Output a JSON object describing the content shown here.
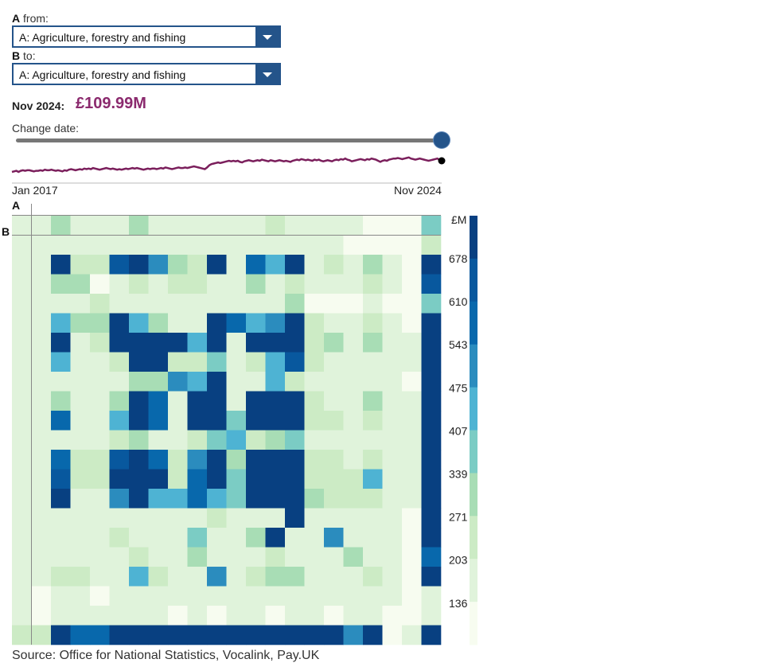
{
  "controls": {
    "from_label_letter": "A",
    "from_label_text": "from:",
    "from_value": "A: Agriculture, forestry and fishing",
    "to_label_letter": "B",
    "to_label_text": "to:",
    "to_value": "A: Agriculture, forestry and fishing",
    "change_date_label": "Change date:",
    "slider_position": 1.0
  },
  "summary": {
    "date": "Nov 2024:",
    "value": "£109.99M",
    "color": "#8b2a6e"
  },
  "source": "Source: Office for National Statistics, Vocalink, Pay.UK",
  "chart_data": [
    {
      "type": "line",
      "x_start": "Jan 2017",
      "x_end": "Nov 2024",
      "color": "#7b1f5c",
      "values": [
        60,
        61,
        62,
        60,
        62,
        63,
        62,
        63,
        63,
        62,
        61,
        62,
        62,
        63,
        62,
        64,
        63,
        63,
        64,
        63,
        62,
        63,
        62,
        61,
        63,
        62,
        64,
        65,
        64,
        63,
        64,
        65,
        64,
        66,
        65,
        66,
        65,
        67,
        66,
        65,
        64,
        65,
        66,
        67,
        66,
        65,
        66,
        65,
        64,
        65,
        64,
        65,
        66,
        65,
        66,
        67,
        66,
        67,
        66,
        65,
        64,
        65,
        66,
        65,
        66,
        66,
        65,
        66,
        67,
        66,
        68,
        67,
        66,
        65,
        66,
        67,
        68,
        67,
        67,
        68,
        67,
        68,
        69,
        70,
        69,
        68,
        67,
        66,
        65,
        68,
        72,
        74,
        75,
        76,
        77,
        76,
        77,
        78,
        79,
        80,
        79,
        80,
        79,
        80,
        78,
        77,
        79,
        80,
        81,
        80,
        79,
        80,
        81,
        80,
        82,
        81,
        80,
        79,
        81,
        80,
        79,
        80,
        81,
        80,
        79,
        80,
        79,
        78,
        80,
        81,
        82,
        81,
        83,
        82,
        81,
        82,
        81,
        80,
        82,
        81,
        82,
        80,
        79,
        80,
        81,
        80,
        79,
        81,
        82,
        81,
        83,
        82,
        84,
        82,
        81,
        79,
        80,
        81,
        82,
        83,
        82,
        81,
        83,
        82,
        84,
        83,
        82,
        80,
        78,
        80,
        81,
        80,
        82,
        83,
        84,
        84,
        85,
        84,
        83,
        84,
        85,
        86,
        84,
        83,
        82,
        83,
        84,
        83,
        82,
        81,
        80,
        81,
        82,
        83,
        84,
        82,
        80
      ],
      "endpoint_value": 80
    },
    {
      "type": "heatmap",
      "x_axis_label": "A",
      "y_axis_label": "B",
      "legend_title": "£M",
      "legend_ticks": [
        "678",
        "610",
        "543",
        "475",
        "407",
        "339",
        "271",
        "203",
        "136"
      ],
      "color_steps": [
        "#f7fcf0",
        "#e0f3db",
        "#ccebc5",
        "#a8ddb5",
        "#7bccc4",
        "#4eb3d3",
        "#2b8cbe",
        "#0868ac",
        "#08589e",
        "#084081"
      ],
      "matrix_levels": [
        [
          1,
          1,
          3,
          1,
          1,
          1,
          3,
          1,
          1,
          1,
          1,
          1,
          1,
          2,
          1,
          1,
          1,
          1,
          0,
          0,
          0,
          4
        ],
        [
          1,
          1,
          1,
          1,
          1,
          1,
          1,
          1,
          1,
          1,
          1,
          1,
          1,
          1,
          1,
          1,
          1,
          0,
          0,
          0,
          0,
          2
        ],
        [
          1,
          1,
          9,
          2,
          2,
          8,
          9,
          6,
          3,
          2,
          9,
          1,
          7,
          5,
          9,
          1,
          2,
          1,
          3,
          1,
          0,
          9
        ],
        [
          1,
          1,
          3,
          3,
          0,
          1,
          2,
          1,
          2,
          2,
          1,
          1,
          3,
          1,
          2,
          1,
          1,
          1,
          2,
          1,
          0,
          8
        ],
        [
          1,
          1,
          1,
          1,
          2,
          1,
          1,
          1,
          1,
          1,
          1,
          1,
          1,
          1,
          3,
          0,
          0,
          0,
          1,
          0,
          0,
          4
        ],
        [
          1,
          1,
          5,
          3,
          3,
          9,
          5,
          3,
          1,
          1,
          9,
          7,
          5,
          6,
          9,
          2,
          1,
          1,
          2,
          1,
          0,
          9
        ],
        [
          1,
          1,
          9,
          1,
          2,
          9,
          9,
          9,
          9,
          5,
          9,
          1,
          9,
          9,
          9,
          2,
          3,
          1,
          3,
          1,
          1,
          9
        ],
        [
          1,
          1,
          5,
          1,
          1,
          2,
          9,
          9,
          2,
          2,
          4,
          1,
          2,
          5,
          8,
          2,
          1,
          1,
          1,
          1,
          1,
          9
        ],
        [
          1,
          1,
          1,
          1,
          1,
          1,
          3,
          3,
          6,
          5,
          9,
          1,
          1,
          5,
          2,
          1,
          1,
          1,
          1,
          1,
          0,
          9
        ],
        [
          1,
          1,
          3,
          1,
          1,
          3,
          9,
          7,
          1,
          9,
          9,
          1,
          9,
          9,
          9,
          2,
          1,
          1,
          3,
          1,
          1,
          9
        ],
        [
          1,
          1,
          7,
          1,
          1,
          5,
          9,
          7,
          1,
          9,
          9,
          4,
          9,
          9,
          9,
          2,
          2,
          1,
          2,
          1,
          1,
          9
        ],
        [
          1,
          1,
          1,
          1,
          1,
          2,
          3,
          1,
          1,
          2,
          4,
          5,
          2,
          3,
          4,
          1,
          1,
          1,
          1,
          1,
          1,
          9
        ],
        [
          1,
          1,
          7,
          2,
          2,
          8,
          9,
          7,
          2,
          6,
          9,
          3,
          9,
          9,
          9,
          2,
          2,
          1,
          2,
          1,
          1,
          9
        ],
        [
          1,
          1,
          8,
          2,
          2,
          9,
          9,
          9,
          2,
          7,
          9,
          4,
          9,
          9,
          9,
          2,
          2,
          2,
          5,
          1,
          1,
          9
        ],
        [
          1,
          1,
          9,
          1,
          1,
          6,
          9,
          5,
          5,
          7,
          5,
          4,
          9,
          9,
          9,
          3,
          2,
          2,
          2,
          1,
          1,
          9
        ],
        [
          1,
          1,
          1,
          1,
          1,
          1,
          1,
          1,
          1,
          1,
          2,
          1,
          1,
          1,
          9,
          1,
          1,
          1,
          1,
          1,
          0,
          9
        ],
        [
          1,
          1,
          1,
          1,
          1,
          2,
          1,
          1,
          1,
          4,
          1,
          1,
          3,
          9,
          1,
          1,
          6,
          1,
          1,
          1,
          0,
          9
        ],
        [
          1,
          1,
          1,
          1,
          1,
          1,
          2,
          1,
          1,
          3,
          1,
          1,
          1,
          2,
          1,
          1,
          1,
          3,
          1,
          1,
          0,
          7
        ],
        [
          1,
          1,
          2,
          2,
          1,
          1,
          5,
          2,
          1,
          1,
          6,
          1,
          2,
          3,
          3,
          1,
          1,
          1,
          2,
          1,
          0,
          9
        ],
        [
          1,
          0,
          1,
          1,
          0,
          1,
          1,
          1,
          1,
          1,
          1,
          1,
          1,
          1,
          1,
          1,
          1,
          1,
          1,
          1,
          0,
          1
        ],
        [
          1,
          0,
          1,
          1,
          1,
          1,
          1,
          1,
          0,
          1,
          0,
          1,
          1,
          0,
          1,
          1,
          0,
          1,
          1,
          0,
          0,
          1
        ],
        [
          2,
          2,
          9,
          7,
          7,
          9,
          9,
          9,
          9,
          9,
          9,
          9,
          9,
          9,
          9,
          9,
          9,
          6,
          9,
          0,
          1,
          9
        ]
      ]
    }
  ]
}
